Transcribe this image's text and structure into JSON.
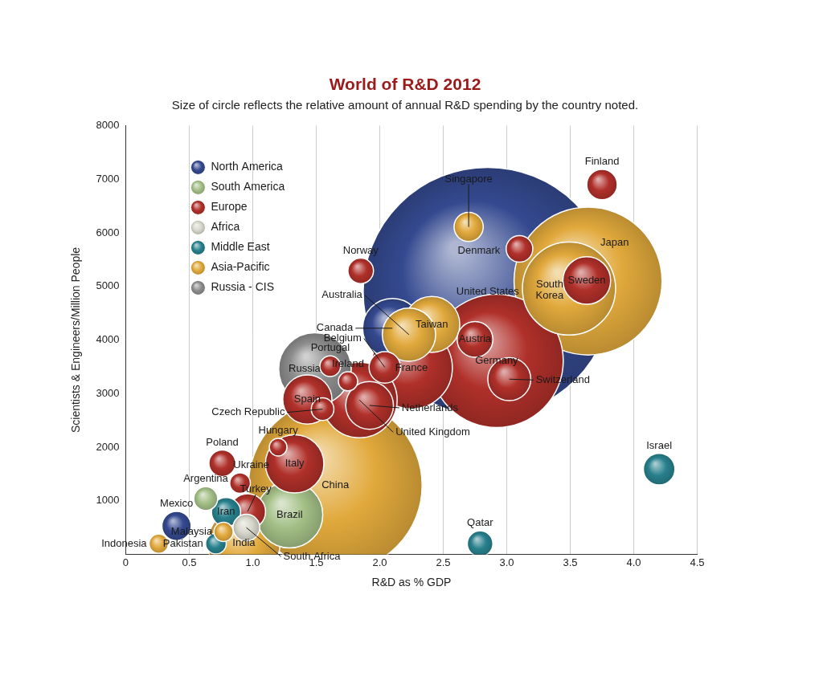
{
  "chart_data": {
    "type": "bubble",
    "title": "World of R&D 2012",
    "subtitle": "Size of circle reflects the relative amount of annual R&D spending by the country noted.",
    "x_label": "R&D as % GDP",
    "y_label": "Scientists & Engineers/Million People",
    "xlim": [
      0,
      4.5
    ],
    "xticks": [
      0,
      0.5,
      {
        "value": 1,
        "label": "1.0"
      },
      1.5,
      {
        "value": 2,
        "label": "2.0"
      },
      2.5,
      {
        "value": 3,
        "label": "3.0"
      },
      3.5,
      {
        "value": 4,
        "label": "4.0"
      },
      4.5
    ],
    "ylim": [
      0,
      8000
    ],
    "yticks": [
      1000,
      2000,
      3000,
      4000,
      5000,
      6000,
      7000,
      8000
    ],
    "grid": "x",
    "legend": "top-left",
    "marker": "circle",
    "series": [
      {
        "name": "North America",
        "color": "#34498f",
        "labels": [
          "United States",
          "Canada",
          "Mexico"
        ],
        "x": [
          2.85,
          2.1,
          0.4
        ],
        "values": [
          4900,
          4220,
          530
        ],
        "sizes": [
          436,
          25,
          6
        ]
      },
      {
        "name": "South America",
        "color": "#a3bf86",
        "labels": [
          "Brazil",
          "Argentina"
        ],
        "x": [
          1.29,
          0.63
        ],
        "values": [
          740,
          1040
        ],
        "sizes": [
          31,
          4
        ]
      },
      {
        "name": "Europe",
        "color": "#b0302a",
        "labels": [
          "Finland",
          "Denmark",
          "Sweden",
          "Norway",
          "Austria",
          "Germany",
          "Switzerland",
          "France",
          "Belgium",
          "United Kingdom",
          "Netherlands",
          "Ireland",
          "Portugal",
          "Spain",
          "Czech Republic",
          "Hungary",
          "Italy",
          "Poland",
          "Ukraine",
          "Turkey"
        ],
        "x": [
          3.75,
          3.1,
          3.63,
          1.85,
          2.75,
          2.92,
          3.02,
          2.25,
          2.04,
          1.84,
          1.92,
          1.75,
          1.61,
          1.43,
          1.55,
          1.2,
          1.33,
          0.76,
          0.9,
          0.96
        ],
        "values": [
          6900,
          5700,
          5110,
          5290,
          4010,
          3610,
          3270,
          3480,
          3490,
          2880,
          2780,
          3230,
          3510,
          2890,
          2710,
          2000,
          1690,
          1700,
          1330,
          800
        ],
        "sizes": [
          6.5,
          5,
          16,
          4.6,
          9,
          125,
          13,
          47,
          7,
          40,
          16,
          2.6,
          3,
          17,
          3.6,
          2.2,
          24,
          5,
          3,
          9
        ]
      },
      {
        "name": "Africa",
        "color": "#d6d6cb",
        "labels": [
          "South Africa"
        ],
        "x": [
          0.95
        ],
        "values": [
          500
        ],
        "sizes": [
          5
        ]
      },
      {
        "name": "Middle East",
        "color": "#27808c",
        "labels": [
          "Israel",
          "Qatar",
          "Iran",
          "Pakistan"
        ],
        "x": [
          4.2,
          2.79,
          0.79,
          0.71
        ],
        "values": [
          1590,
          200,
          790,
          200
        ],
        "sizes": [
          7,
          4.6,
          6,
          3
        ]
      },
      {
        "name": "Asia-Pacific",
        "color": "#e1a93c",
        "labels": [
          "Japan",
          "South Korea",
          "Singapore",
          "Taiwan",
          "Australia",
          "China",
          "India",
          "Malaysia",
          "Indonesia"
        ],
        "x": [
          3.64,
          3.49,
          2.7,
          2.41,
          2.23,
          1.65,
          0.93,
          0.77,
          0.26
        ],
        "values": [
          5100,
          4960,
          6110,
          4290,
          4100,
          1290,
          210,
          420,
          200
        ],
        "sizes": [
          154,
          61,
          6,
          22,
          20,
          212,
          37,
          2.6,
          2.6
        ]
      },
      {
        "name": "Russia - CIS",
        "color": "#8c8c8c",
        "labels": [
          "Russia"
        ],
        "x": [
          1.49
        ],
        "values": [
          3460
        ],
        "sizes": [
          37
        ]
      }
    ]
  }
}
